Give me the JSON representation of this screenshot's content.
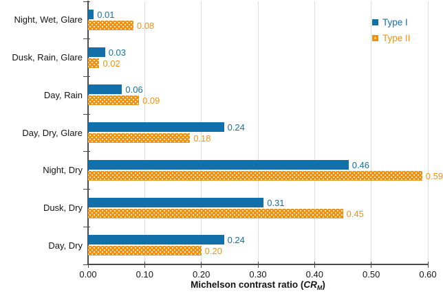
{
  "chart_data": {
    "type": "bar",
    "orientation": "horizontal",
    "categories": [
      "Night, Wet, Glare",
      "Dusk, Rain, Glare",
      "Day, Rain",
      "Day, Dry, Glare",
      "Night, Dry",
      "Dusk, Dry",
      "Day, Dry"
    ],
    "series": [
      {
        "name": "Type I",
        "color": "#1170aa",
        "pattern": "solid",
        "values": [
          0.01,
          0.03,
          0.06,
          0.24,
          0.46,
          0.31,
          0.24
        ],
        "labels": [
          "0.01",
          "0.03",
          "0.06",
          "0.24",
          "0.46",
          "0.31",
          "0.24"
        ]
      },
      {
        "name": "Type II",
        "color": "#f0920f",
        "pattern": "white-dots",
        "values": [
          0.08,
          0.02,
          0.09,
          0.18,
          0.59,
          0.45,
          0.2
        ],
        "labels": [
          "0.08",
          "0.02",
          "0.09",
          "0.18",
          "0.59",
          "0.45",
          "0.20"
        ]
      }
    ],
    "xlabel": {
      "text": "Michelson contrast ratio (CRM)",
      "prefix": "Michelson contrast ratio (",
      "var": "CR",
      "sub": "M",
      "suffix": ")"
    },
    "xlim": [
      0,
      0.6
    ],
    "xticks": [
      {
        "value": 0.0,
        "label": "0.00"
      },
      {
        "value": 0.1,
        "label": "0.10"
      },
      {
        "value": 0.2,
        "label": "0.20"
      },
      {
        "value": 0.3,
        "label": "0.30"
      },
      {
        "value": 0.4,
        "label": "0.40"
      },
      {
        "value": 0.5,
        "label": "0.50"
      },
      {
        "value": 0.6,
        "label": "0.60"
      }
    ],
    "grid": "vertical-on",
    "legend_position": "top-right"
  },
  "colors": {
    "axis": "#4a4a4a",
    "grid": "#dcdcdc",
    "background": "#ffffff",
    "text": "#141414",
    "series1": "#1170aa",
    "series2": "#f0920f"
  }
}
